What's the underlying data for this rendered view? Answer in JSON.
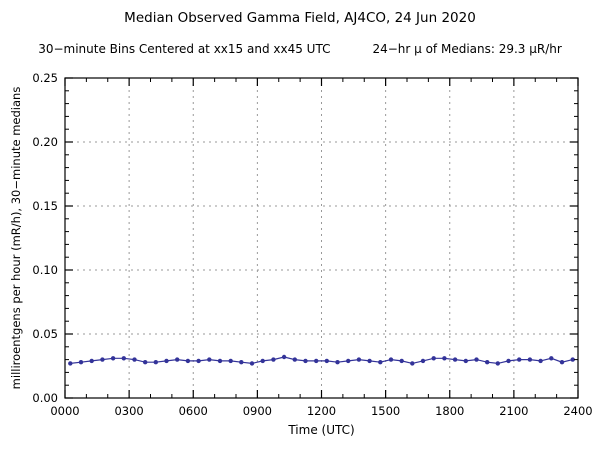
{
  "title": "Median Observed Gamma Field, AJ4CO, 24 Jun 2020",
  "subtitle_left": "30−minute Bins Centered at xx15 and xx45 UTC",
  "subtitle_right": "24−hr μ of Medians: 29.3 μR/hr",
  "chart_data": {
    "type": "line",
    "title": "Median Observed Gamma Field, AJ4CO, 24 Jun 2020",
    "xlabel": "Time (UTC)",
    "ylabel": "milliroentgens per hour (mR/h), 30−minute medians",
    "xlim": [
      0,
      24
    ],
    "ylim": [
      0,
      0.25
    ],
    "x_major_ticks": [
      0,
      3,
      6,
      9,
      12,
      15,
      18,
      21,
      24
    ],
    "x_tick_labels": [
      "0000",
      "0300",
      "0600",
      "0900",
      "1200",
      "1500",
      "1800",
      "2100",
      "2400"
    ],
    "y_major_ticks": [
      0,
      0.05,
      0.1,
      0.15,
      0.2,
      0.25
    ],
    "y_tick_labels": [
      "0.00",
      "0.05",
      "0.10",
      "0.15",
      "0.20",
      "0.25"
    ],
    "x_minor_step": 1,
    "y_minor_step": 0.01,
    "grid": "dashed",
    "legend": "none",
    "line_color": "#333399",
    "grid_color": "#999999",
    "axis_color": "#000000",
    "marker": "dot",
    "summary_mean_uR_per_hr": 29.3,
    "x": [
      0.25,
      0.75,
      1.25,
      1.75,
      2.25,
      2.75,
      3.25,
      3.75,
      4.25,
      4.75,
      5.25,
      5.75,
      6.25,
      6.75,
      7.25,
      7.75,
      8.25,
      8.75,
      9.25,
      9.75,
      10.25,
      10.75,
      11.25,
      11.75,
      12.25,
      12.75,
      13.25,
      13.75,
      14.25,
      14.75,
      15.25,
      15.75,
      16.25,
      16.75,
      17.25,
      17.75,
      18.25,
      18.75,
      19.25,
      19.75,
      20.25,
      20.75,
      21.25,
      21.75,
      22.25,
      22.75,
      23.25,
      23.75
    ],
    "values": [
      0.027,
      0.028,
      0.029,
      0.03,
      0.031,
      0.031,
      0.03,
      0.028,
      0.028,
      0.029,
      0.03,
      0.029,
      0.029,
      0.03,
      0.029,
      0.029,
      0.028,
      0.027,
      0.029,
      0.03,
      0.032,
      0.03,
      0.029,
      0.029,
      0.029,
      0.028,
      0.029,
      0.03,
      0.029,
      0.028,
      0.03,
      0.029,
      0.027,
      0.029,
      0.031,
      0.031,
      0.03,
      0.029,
      0.03,
      0.028,
      0.027,
      0.029,
      0.03,
      0.03,
      0.029,
      0.031,
      0.028,
      0.03
    ]
  }
}
